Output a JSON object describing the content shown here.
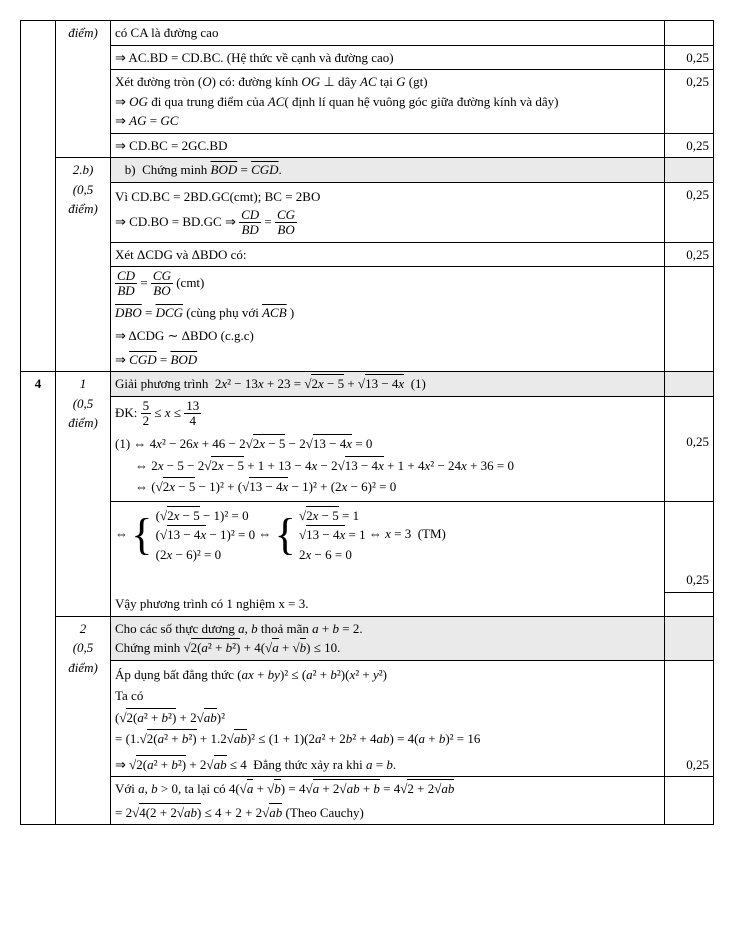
{
  "rows": [
    {
      "c1": "",
      "c2": "",
      "c2i": "điểm)",
      "c3": "có CA là đường cao",
      "c4": ""
    },
    {
      "c3": "⇒ AC.BD = CD.BC. (Hệ thức về cạnh và đường cao)",
      "c4": "0,25"
    },
    {
      "c3": "Xét đường tròn (O) có: đường kính OG ⊥ dây AC tại G (gt)\n⇒ OG đi qua trung điểm của AC( định lí quan hệ vuông góc giữa đường kính và dây)\n⇒ AG = GC",
      "c4": "0,25"
    },
    {
      "c3": "⇒ CD.BC = 2GC.BD",
      "c4": "0,25"
    },
    {
      "sec": "2.b)",
      "pts": "(0,5 điểm)",
      "title": "b) Chứng minh B̂OD = ĈGD."
    },
    {
      "c3": "eq_vibc",
      "c4": "0,25"
    },
    {
      "c3": "xet",
      "c4": "0,25"
    },
    {
      "c3": "cmt",
      "c4": ""
    },
    {
      "c3": "dbo",
      "c4": ""
    },
    {
      "c3": "sim",
      "c4": ""
    },
    {
      "c3": "cgd",
      "c4": ""
    },
    {
      "q": "4",
      "sec": "1",
      "pts": "(0,5 điểm)",
      "title": "Giải phương trình 2x² − 13x + 23 = √(2x − 5) + √(13 − 4x)  (1)"
    },
    {
      "c3": "dk",
      "c4": ""
    },
    {
      "c3": "eq1",
      "c4": ""
    },
    {
      "c3": "eq2",
      "c4": ""
    },
    {
      "c3": "eq3",
      "c4": "0,25"
    },
    {
      "c3": "brace",
      "c4": "0,25"
    },
    {
      "c3": "Vậy phương trình có 1 nghiệm x = 3.",
      "c4": ""
    },
    {
      "sec": "2",
      "pts": "(0,5 điểm)",
      "title": "Cho các số thực dương a, b thoả mãn a + b = 2.\nChứng minh √(2(a² + b²)) + 4(√a + √b) ≤ 10."
    },
    {
      "c3": "ap",
      "c4": ""
    },
    {
      "c3": "taco",
      "c4": ""
    },
    {
      "c3": "sq",
      "c4": ""
    },
    {
      "c3": "exp",
      "c4": ""
    },
    {
      "c3": "imp",
      "c4": "0,25"
    },
    {
      "c3": "voi",
      "c4": ""
    },
    {
      "c3": "theo",
      "c4": ""
    }
  ],
  "texts": {
    "vibc_a": "Vì CD.BC = 2BD.GC(cmt); BC = 2BO",
    "vibc_b": "⇒ CD.BO = BD.GC ⇒ ",
    "xet": "Xét ΔCDG và ΔBDO có:",
    "cmt_suffix": " (cmt)",
    "dbo": "D̂BO = D̂CG (cùng phụ với ÂCB )",
    "sim": "⇒ ΔCDG ∼ ΔBDO (c.g.c)",
    "cgd": "⇒ ĈGD = B̂OD",
    "dk_a": "ĐK: ",
    "eq1": "(1) ⇔ 4x² − 26x + 46 − 2√(2x − 5) − 2√(13 − 4x) = 0",
    "eq2": "⇔ 2x − 5 − 2√(2x − 5) + 1 + 13 − 4x − 2√(13 − 4x) + 1 + 4x² − 24x + 36 = 0",
    "eq3": "⇔ (√(2x − 5) − 1)² + (√(13 − 4x) − 1)² + (2x − 6)² = 0",
    "br_l1": "(√(2x − 5) − 1)² = 0",
    "br_l2": "(√(13 − 4x) − 1)² = 0",
    "br_l3": "(2x − 6)² = 0",
    "br_r1": "√(2x − 5) = 1",
    "br_r2": "√(13 − 4x) = 1",
    "br_r3": "2x − 6 = 0",
    "br_suffix": "⇔ x = 3  (TM)",
    "ap": "Áp dụng bất đẳng thức (ax + by)² ≤ (a² + b²)(x² + y²)",
    "taco": "Ta có",
    "sq": "(√(2(a² + b²)) + 2√(ab))²",
    "exp": "= (1.√(2(a² + b²)) + 1.2√(ab))² ≤ (1 + 1)(2a² + 2b² + 4ab) = 4(a + b)² = 16",
    "imp": "⇒ √(2(a² + b²)) + 2√(ab) ≤ 4  Đẳng thức xảy ra khi a = b.",
    "voi": "Với a, b > 0, ta lại có 4(√a + √b) = 4√(a + 2√(ab) + b) = 4√(2 + 2√(ab))",
    "theo": "= 2√(4(2 + 2√(ab))) ≤ 4 + 2 + 2√(ab) (Theo Cauchy)"
  }
}
